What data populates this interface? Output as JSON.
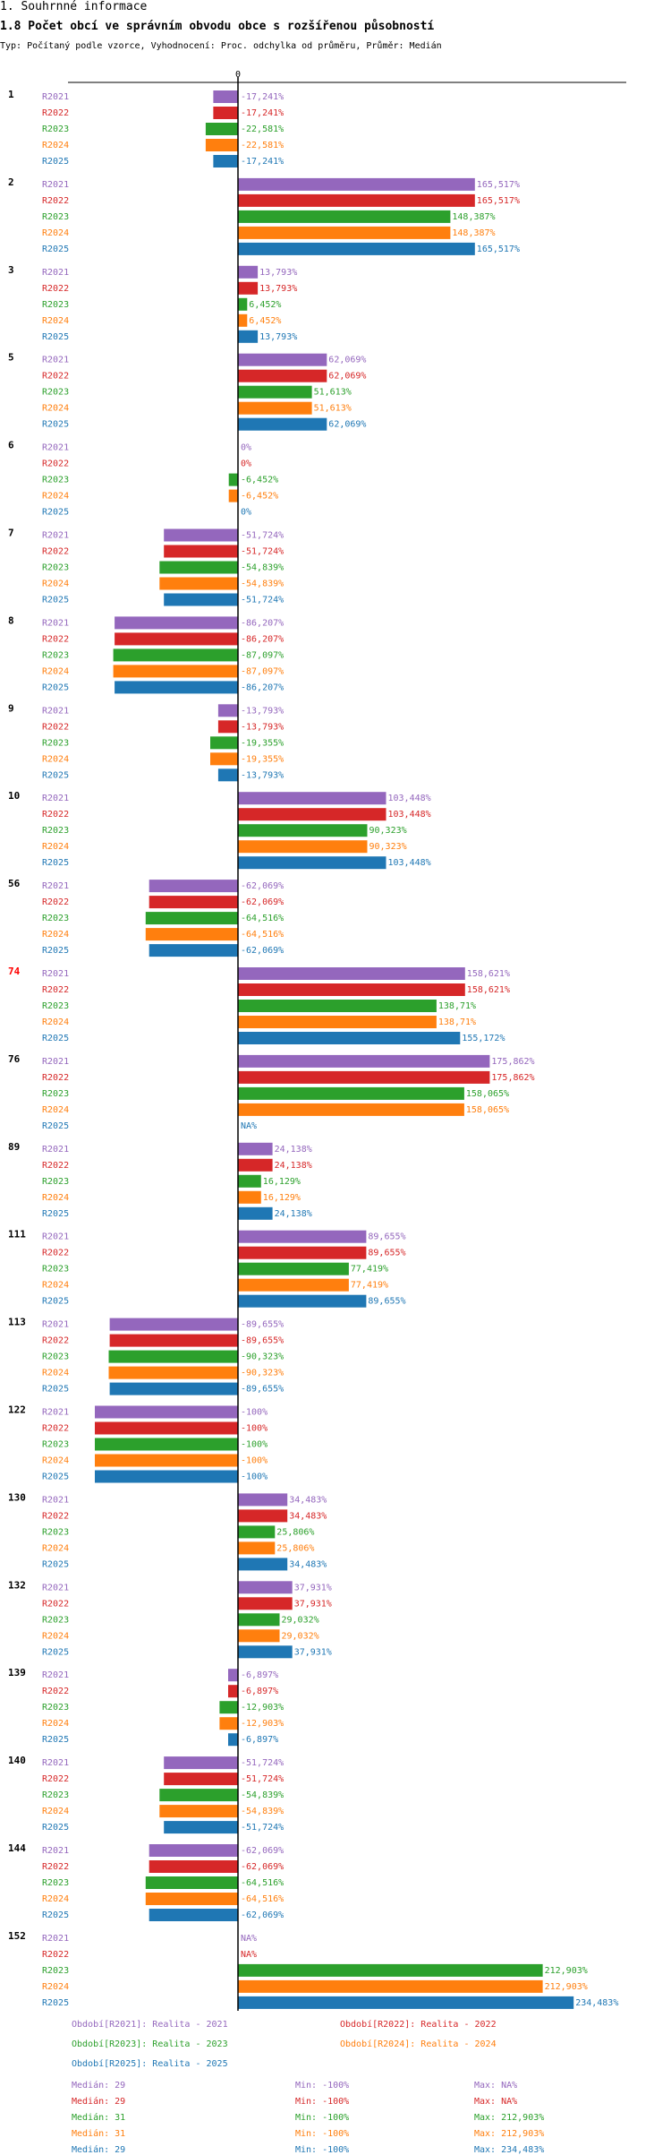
{
  "header": {
    "section": "1. Souhrnné informace",
    "title": "1.8 Počet obcí ve správním obvodu obce s rozšířenou působností",
    "subtitle": "Typ: Počítaný podle vzorce, Vyhodnocení: Proc. odchylka od průměru, Průměr: Medián"
  },
  "colors": {
    "R2021": "#9467bd",
    "R2022": "#d62728",
    "R2023": "#2ca02c",
    "R2024": "#ff7f0e",
    "R2025": "#1f77b4",
    "highlight": "#ff0000"
  },
  "chart_data": {
    "type": "bar",
    "orientation": "horizontal",
    "zero_label": "0",
    "unit": "%",
    "series_names": [
      "R2021",
      "R2022",
      "R2023",
      "R2024",
      "R2025"
    ],
    "groups": [
      {
        "label": "1",
        "values": [
          -17.241,
          -17.241,
          -22.581,
          -22.581,
          -17.241
        ],
        "labels": [
          "-17,241%",
          "-17,241%",
          "-22,581%",
          "-22,581%",
          "-17,241%"
        ]
      },
      {
        "label": "2",
        "values": [
          165.517,
          165.517,
          148.387,
          148.387,
          165.517
        ],
        "labels": [
          "165,517%",
          "165,517%",
          "148,387%",
          "148,387%",
          "165,517%"
        ]
      },
      {
        "label": "3",
        "values": [
          13.793,
          13.793,
          6.452,
          6.452,
          13.793
        ],
        "labels": [
          "13,793%",
          "13,793%",
          "6,452%",
          "6,452%",
          "13,793%"
        ]
      },
      {
        "label": "5",
        "values": [
          62.069,
          62.069,
          51.613,
          51.613,
          62.069
        ],
        "labels": [
          "62,069%",
          "62,069%",
          "51,613%",
          "51,613%",
          "62,069%"
        ]
      },
      {
        "label": "6",
        "values": [
          0,
          0,
          -6.452,
          -6.452,
          0
        ],
        "labels": [
          "0%",
          "0%",
          "-6,452%",
          "-6,452%",
          "0%"
        ]
      },
      {
        "label": "7",
        "values": [
          -51.724,
          -51.724,
          -54.839,
          -54.839,
          -51.724
        ],
        "labels": [
          "-51,724%",
          "-51,724%",
          "-54,839%",
          "-54,839%",
          "-51,724%"
        ]
      },
      {
        "label": "8",
        "values": [
          -86.207,
          -86.207,
          -87.097,
          -87.097,
          -86.207
        ],
        "labels": [
          "-86,207%",
          "-86,207%",
          "-87,097%",
          "-87,097%",
          "-86,207%"
        ]
      },
      {
        "label": "9",
        "values": [
          -13.793,
          -13.793,
          -19.355,
          -19.355,
          -13.793
        ],
        "labels": [
          "-13,793%",
          "-13,793%",
          "-19,355%",
          "-19,355%",
          "-13,793%"
        ]
      },
      {
        "label": "10",
        "values": [
          103.448,
          103.448,
          90.323,
          90.323,
          103.448
        ],
        "labels": [
          "103,448%",
          "103,448%",
          "90,323%",
          "90,323%",
          "103,448%"
        ]
      },
      {
        "label": "56",
        "values": [
          -62.069,
          -62.069,
          -64.516,
          -64.516,
          -62.069
        ],
        "labels": [
          "-62,069%",
          "-62,069%",
          "-64,516%",
          "-64,516%",
          "-62,069%"
        ]
      },
      {
        "label": "74",
        "highlight": true,
        "values": [
          158.621,
          158.621,
          138.71,
          138.71,
          155.172
        ],
        "labels": [
          "158,621%",
          "158,621%",
          "138,71%",
          "138,71%",
          "155,172%"
        ]
      },
      {
        "label": "76",
        "values": [
          175.862,
          175.862,
          158.065,
          158.065,
          null
        ],
        "labels": [
          "175,862%",
          "175,862%",
          "158,065%",
          "158,065%",
          "NA%"
        ]
      },
      {
        "label": "89",
        "values": [
          24.138,
          24.138,
          16.129,
          16.129,
          24.138
        ],
        "labels": [
          "24,138%",
          "24,138%",
          "16,129%",
          "16,129%",
          "24,138%"
        ]
      },
      {
        "label": "111",
        "values": [
          89.655,
          89.655,
          77.419,
          77.419,
          89.655
        ],
        "labels": [
          "89,655%",
          "89,655%",
          "77,419%",
          "77,419%",
          "89,655%"
        ]
      },
      {
        "label": "113",
        "values": [
          -89.655,
          -89.655,
          -90.323,
          -90.323,
          -89.655
        ],
        "labels": [
          "-89,655%",
          "-89,655%",
          "-90,323%",
          "-90,323%",
          "-89,655%"
        ]
      },
      {
        "label": "122",
        "values": [
          -100,
          -100,
          -100,
          -100,
          -100
        ],
        "labels": [
          "-100%",
          "-100%",
          "-100%",
          "-100%",
          "-100%"
        ]
      },
      {
        "label": "130",
        "values": [
          34.483,
          34.483,
          25.806,
          25.806,
          34.483
        ],
        "labels": [
          "34,483%",
          "34,483%",
          "25,806%",
          "25,806%",
          "34,483%"
        ]
      },
      {
        "label": "132",
        "values": [
          37.931,
          37.931,
          29.032,
          29.032,
          37.931
        ],
        "labels": [
          "37,931%",
          "37,931%",
          "29,032%",
          "29,032%",
          "37,931%"
        ]
      },
      {
        "label": "139",
        "values": [
          -6.897,
          -6.897,
          -12.903,
          -12.903,
          -6.897
        ],
        "labels": [
          "-6,897%",
          "-6,897%",
          "-12,903%",
          "-12,903%",
          "-6,897%"
        ]
      },
      {
        "label": "140",
        "values": [
          -51.724,
          -51.724,
          -54.839,
          -54.839,
          -51.724
        ],
        "labels": [
          "-51,724%",
          "-51,724%",
          "-54,839%",
          "-54,839%",
          "-51,724%"
        ]
      },
      {
        "label": "144",
        "values": [
          -62.069,
          -62.069,
          -64.516,
          -64.516,
          -62.069
        ],
        "labels": [
          "-62,069%",
          "-62,069%",
          "-64,516%",
          "-64,516%",
          "-62,069%"
        ]
      },
      {
        "label": "152",
        "values": [
          null,
          null,
          212.903,
          212.903,
          234.483
        ],
        "labels": [
          "NA%",
          "NA%",
          "212,903%",
          "212,903%",
          "234,483%"
        ]
      }
    ],
    "legend": {
      "series": [
        {
          "key": "R2021",
          "label": "Období[R2021]: Realita - 2021"
        },
        {
          "key": "R2022",
          "label": "Období[R2022]: Realita - 2022"
        },
        {
          "key": "R2023",
          "label": "Období[R2023]: Realita - 2023"
        },
        {
          "key": "R2024",
          "label": "Období[R2024]: Realita - 2024"
        },
        {
          "key": "R2025",
          "label": "Období[R2025]: Realita - 2025"
        }
      ],
      "stats": [
        {
          "key": "R2021",
          "median": "Medián: 29",
          "min": "Min: -100%",
          "max": "Max: NA%"
        },
        {
          "key": "R2022",
          "median": "Medián: 29",
          "min": "Min: -100%",
          "max": "Max: NA%"
        },
        {
          "key": "R2023",
          "median": "Medián: 31",
          "min": "Min: -100%",
          "max": "Max: 212,903%"
        },
        {
          "key": "R2024",
          "median": "Medián: 31",
          "min": "Min: -100%",
          "max": "Max: 212,903%"
        },
        {
          "key": "R2025",
          "median": "Medián: 29",
          "min": "Min: -100%",
          "max": "Max: 234,483%"
        }
      ]
    }
  }
}
